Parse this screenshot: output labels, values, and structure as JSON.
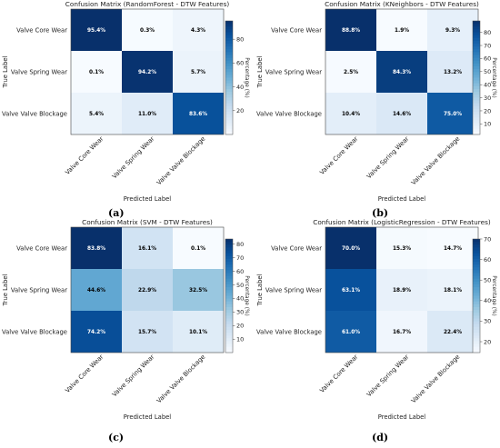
{
  "chart_data": [
    {
      "type": "heatmap",
      "title": "Confusion Matrix (RandomForest - DTW Features)",
      "xlabel": "Predicted Label",
      "ylabel": "True Label",
      "categories": [
        "Valve Core Wear",
        "Valve Spring Wear",
        "Valve Valve Blockage"
      ],
      "values": [
        [
          95.4,
          0.3,
          4.3
        ],
        [
          0.1,
          94.2,
          5.7
        ],
        [
          5.4,
          11.0,
          83.6
        ]
      ],
      "cell_labels": [
        [
          "95.4%",
          "0.3%",
          "4.3%"
        ],
        [
          "0.1%",
          "94.2%",
          "5.7%"
        ],
        [
          "5.4%",
          "11.0%",
          "83.6%"
        ]
      ],
      "vmin": 0,
      "vmax": 95.4,
      "colorbar_label": "Percentage (%)",
      "colorbar_ticks": [
        "20",
        "40",
        "60",
        "80"
      ],
      "colorbar_tick_values": [
        20,
        40,
        60,
        80
      ],
      "colormap": "Blues",
      "caption": "(a)"
    },
    {
      "type": "heatmap",
      "title": "Confusion Matrix (KNeighbors - DTW Features)",
      "xlabel": "Predicted Label",
      "ylabel": "True Label",
      "categories": [
        "Valve Core Wear",
        "Valve Spring Wear",
        "Valve Valve Blockage"
      ],
      "values": [
        [
          88.8,
          1.9,
          9.3
        ],
        [
          2.5,
          84.3,
          13.2
        ],
        [
          10.4,
          14.6,
          75.0
        ]
      ],
      "cell_labels": [
        [
          "88.8%",
          "1.9%",
          "9.3%"
        ],
        [
          "2.5%",
          "84.3%",
          "13.2%"
        ],
        [
          "10.4%",
          "14.6%",
          "75.0%"
        ]
      ],
      "vmin": 1.9,
      "vmax": 88.8,
      "colorbar_label": "Percentage (%)",
      "colorbar_ticks": [
        "10",
        "20",
        "30",
        "40",
        "50",
        "60",
        "70",
        "80"
      ],
      "colorbar_tick_values": [
        10,
        20,
        30,
        40,
        50,
        60,
        70,
        80
      ],
      "colormap": "Blues",
      "caption": "(b)"
    },
    {
      "type": "heatmap",
      "title": "Confusion Matrix (SVM - DTW Features)",
      "xlabel": "Predicted Label",
      "ylabel": "True Label",
      "categories": [
        "Valve Core Wear",
        "Valve Spring Wear",
        "Valve Valve Blockage"
      ],
      "values": [
        [
          83.8,
          16.1,
          0.1
        ],
        [
          44.6,
          22.9,
          32.5
        ],
        [
          74.2,
          15.7,
          10.1
        ]
      ],
      "cell_labels": [
        [
          "83.8%",
          "16.1%",
          "0.1%"
        ],
        [
          "44.6%",
          "22.9%",
          "32.5%"
        ],
        [
          "74.2%",
          "15.7%",
          "10.1%"
        ]
      ],
      "vmin": 0.1,
      "vmax": 83.8,
      "colorbar_label": "Percentage (%)",
      "colorbar_ticks": [
        "10",
        "20",
        "30",
        "40",
        "50",
        "60",
        "70",
        "80"
      ],
      "colorbar_tick_values": [
        10,
        20,
        30,
        40,
        50,
        60,
        70,
        80
      ],
      "colormap": "Blues",
      "caption": "(c)"
    },
    {
      "type": "heatmap",
      "title": "Confusion Matrix (LogisticRegression - DTW Features)",
      "xlabel": "Predicted Label",
      "ylabel": "True Label",
      "categories": [
        "Valve Core Wear",
        "Valve Spring Wear",
        "Valve Valve Blockage"
      ],
      "values": [
        [
          70.0,
          15.3,
          14.7
        ],
        [
          63.1,
          18.9,
          18.1
        ],
        [
          61.0,
          16.7,
          22.4
        ]
      ],
      "cell_labels": [
        [
          "70.0%",
          "15.3%",
          "14.7%"
        ],
        [
          "63.1%",
          "18.9%",
          "18.1%"
        ],
        [
          "61.0%",
          "16.7%",
          "22.4%"
        ]
      ],
      "vmin": 14.7,
      "vmax": 70.0,
      "colorbar_label": "Percentage (%)",
      "colorbar_ticks": [
        "20",
        "30",
        "40",
        "50",
        "60",
        "70"
      ],
      "colorbar_tick_values": [
        20,
        30,
        40,
        50,
        60,
        70
      ],
      "colormap": "Blues",
      "caption": "(d)"
    }
  ]
}
